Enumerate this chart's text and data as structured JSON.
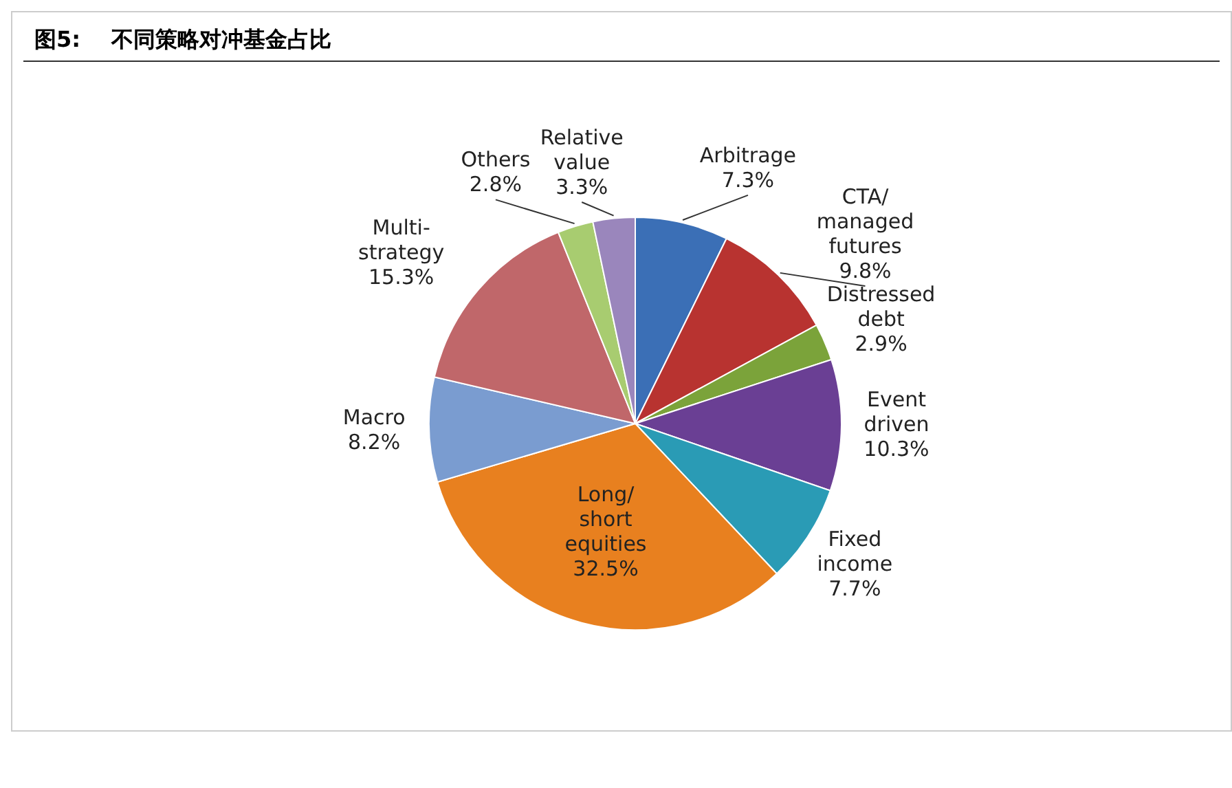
{
  "chart_data": {
    "type": "pie",
    "title": "图5:    不同策略对冲基金占比",
    "categories": [
      "Arbitrage",
      "CTA/managed futures",
      "Distressed debt",
      "Event driven",
      "Fixed income",
      "Long/short equities",
      "Macro",
      "Multi-strategy",
      "Others",
      "Relative value"
    ],
    "values": [
      7.3,
      9.8,
      2.9,
      10.3,
      7.7,
      32.5,
      8.2,
      15.3,
      2.8,
      3.3
    ],
    "value_labels": [
      "7.3%",
      "9.8%",
      "2.9%",
      "10.3%",
      "7.7%",
      "32.5%",
      "8.2%",
      "15.3%",
      "2.8%",
      "3.3%"
    ],
    "colors": [
      "#3b6fb6",
      "#b83330",
      "#7ba33a",
      "#6a3f94",
      "#2a9bb5",
      "#e8801f",
      "#7a9cd0",
      "#c0676a",
      "#a8cc70",
      "#9a86bc"
    ],
    "legend": false
  }
}
